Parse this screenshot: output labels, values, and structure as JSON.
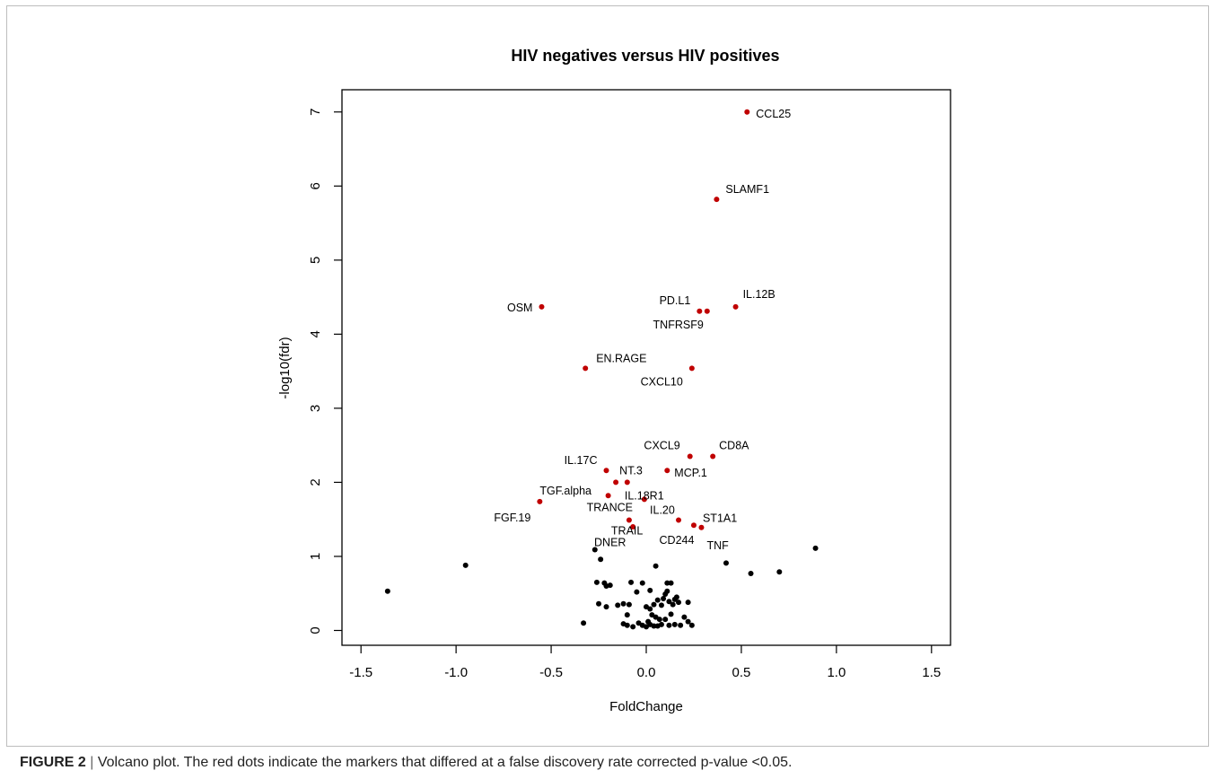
{
  "chart_data": {
    "type": "scatter",
    "title": "HIV negatives versus HIV positives",
    "xlabel": "FoldChange",
    "ylabel": "-log10(fdr)",
    "xlim": [
      -1.6,
      1.6
    ],
    "ylim": [
      -0.2,
      7.3
    ],
    "xticks": [
      -1.5,
      -1.0,
      -0.5,
      0.0,
      0.5,
      1.0,
      1.5
    ],
    "xtick_labels": [
      "-1.5",
      "-1.0",
      "-0.5",
      "0.0",
      "0.5",
      "1.0",
      "1.5"
    ],
    "yticks": [
      0,
      1,
      2,
      3,
      4,
      5,
      6,
      7
    ],
    "ytick_labels": [
      "0",
      "1",
      "2",
      "3",
      "4",
      "5",
      "6",
      "7"
    ],
    "grid": false,
    "legend": "none",
    "colors": {
      "significant": "#c00000",
      "nonsignificant": "#000000"
    },
    "significant_points": [
      {
        "label": "CCL25",
        "x": 0.53,
        "y": 7.0
      },
      {
        "label": "SLAMF1",
        "x": 0.37,
        "y": 5.82
      },
      {
        "label": "IL.12B",
        "x": 0.47,
        "y": 4.37
      },
      {
        "label": "PD.L1",
        "x": 0.28,
        "y": 4.31
      },
      {
        "label": "TNFRSF9",
        "x": 0.32,
        "y": 4.31
      },
      {
        "label": "OSM",
        "x": -0.55,
        "y": 4.37
      },
      {
        "label": "EN.RAGE",
        "x": -0.32,
        "y": 3.54
      },
      {
        "label": "CXCL10",
        "x": 0.24,
        "y": 3.54
      },
      {
        "label": "CXCL9",
        "x": 0.23,
        "y": 2.35
      },
      {
        "label": "CD8A",
        "x": 0.35,
        "y": 2.35
      },
      {
        "label": "IL.17C",
        "x": -0.21,
        "y": 2.16
      },
      {
        "label": "MCP.1",
        "x": 0.11,
        "y": 2.16
      },
      {
        "label": "NT.3",
        "x": -0.16,
        "y": 2.0
      },
      {
        "label": "",
        "x": -0.1,
        "y": 2.0
      },
      {
        "label": "TGF.alpha",
        "x": -0.56,
        "y": 1.74
      },
      {
        "label": "TRANCE",
        "x": -0.2,
        "y": 1.82
      },
      {
        "label": "IL.18R1",
        "x": -0.01,
        "y": 1.77
      },
      {
        "label": "IL.20",
        "x": 0.17,
        "y": 1.49
      },
      {
        "label": "ST1A1",
        "x": 0.25,
        "y": 1.42
      },
      {
        "label": "CD244",
        "x": 0.29,
        "y": 1.39
      },
      {
        "label": "TRAIL",
        "x": -0.09,
        "y": 1.49
      },
      {
        "label": "",
        "x": -0.07,
        "y": 1.4
      }
    ],
    "other_point_labels": [
      {
        "label": "FGF.19",
        "x": -0.56,
        "y": 1.74
      },
      {
        "label": "DNER",
        "x": -0.25,
        "y": 1.08
      },
      {
        "label": "TNF",
        "x": 0.29,
        "y": 1.39
      }
    ],
    "nonsignificant_points": [
      [
        -1.36,
        0.53
      ],
      [
        -0.95,
        0.88
      ],
      [
        -0.33,
        0.1
      ],
      [
        -0.27,
        1.09
      ],
      [
        -0.24,
        0.96
      ],
      [
        -0.26,
        0.65
      ],
      [
        -0.22,
        0.64
      ],
      [
        -0.21,
        0.6
      ],
      [
        -0.19,
        0.61
      ],
      [
        -0.25,
        0.36
      ],
      [
        -0.21,
        0.32
      ],
      [
        -0.15,
        0.34
      ],
      [
        -0.12,
        0.36
      ],
      [
        -0.09,
        0.35
      ],
      [
        -0.1,
        0.21
      ],
      [
        -0.12,
        0.09
      ],
      [
        -0.1,
        0.07
      ],
      [
        -0.07,
        0.05
      ],
      [
        -0.04,
        0.1
      ],
      [
        -0.02,
        0.07
      ],
      [
        -0.08,
        0.65
      ],
      [
        -0.05,
        0.52
      ],
      [
        -0.02,
        0.64
      ],
      [
        0.02,
        0.54
      ],
      [
        0.05,
        0.87
      ],
      [
        0.0,
        0.32
      ],
      [
        0.02,
        0.29
      ],
      [
        0.04,
        0.35
      ],
      [
        0.06,
        0.41
      ],
      [
        0.03,
        0.21
      ],
      [
        0.05,
        0.18
      ],
      [
        0.07,
        0.15
      ],
      [
        0.08,
        0.34
      ],
      [
        0.09,
        0.43
      ],
      [
        0.1,
        0.49
      ],
      [
        0.11,
        0.53
      ],
      [
        0.11,
        0.64
      ],
      [
        0.13,
        0.64
      ],
      [
        0.12,
        0.39
      ],
      [
        0.14,
        0.35
      ],
      [
        0.15,
        0.42
      ],
      [
        0.16,
        0.45
      ],
      [
        0.17,
        0.38
      ],
      [
        0.13,
        0.22
      ],
      [
        0.1,
        0.15
      ],
      [
        0.08,
        0.08
      ],
      [
        0.06,
        0.06
      ],
      [
        0.04,
        0.06
      ],
      [
        0.02,
        0.08
      ],
      [
        0.0,
        0.05
      ],
      [
        0.01,
        0.12
      ],
      [
        0.18,
        0.07
      ],
      [
        0.2,
        0.18
      ],
      [
        0.22,
        0.12
      ],
      [
        0.24,
        0.07
      ],
      [
        0.22,
        0.38
      ],
      [
        0.15,
        0.08
      ],
      [
        0.12,
        0.07
      ],
      [
        0.42,
        0.91
      ],
      [
        0.55,
        0.77
      ],
      [
        0.7,
        0.79
      ],
      [
        0.89,
        1.11
      ]
    ]
  },
  "caption": {
    "figure_label": "FIGURE 2",
    "separator": "|",
    "text": "Volcano plot. The red dots indicate the markers that differed at a false discovery rate corrected p-value <0.05."
  }
}
